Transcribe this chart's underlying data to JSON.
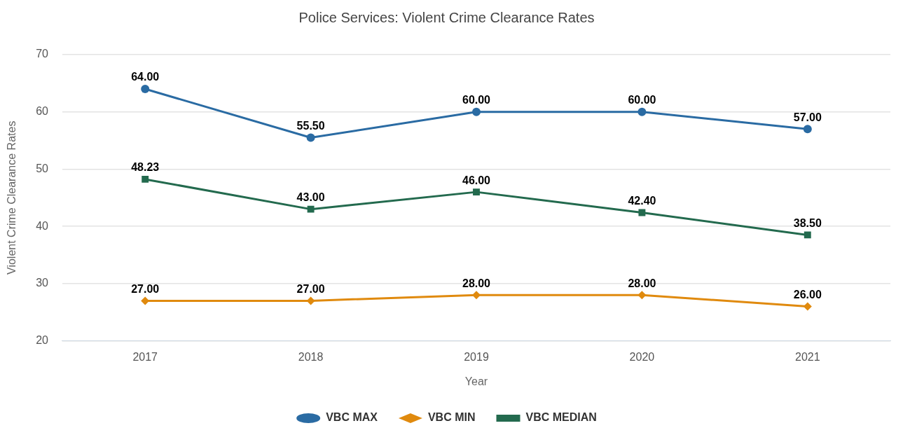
{
  "chart_data": {
    "type": "line",
    "title": "Police Services: Violent Crime Clearance Rates",
    "xlabel": "Year",
    "ylabel": "Violent Crime Clearance Rates",
    "categories": [
      "2017",
      "2018",
      "2019",
      "2020",
      "2021"
    ],
    "series": [
      {
        "name": "VBC MAX",
        "color": "#2a6ba3",
        "marker": "circle",
        "values": [
          64.0,
          55.5,
          60.0,
          60.0,
          57.0
        ],
        "value_labels": [
          "64.00",
          "55.50",
          "60.00",
          "60.00",
          "57.00"
        ]
      },
      {
        "name": "VBC MIN",
        "color": "#e08a0e",
        "marker": "diamond",
        "values": [
          27.0,
          27.0,
          28.0,
          28.0,
          26.0
        ],
        "value_labels": [
          "27.00",
          "27.00",
          "28.00",
          "28.00",
          "26.00"
        ]
      },
      {
        "name": "VBC MEDIAN",
        "color": "#236a4e",
        "marker": "square",
        "values": [
          48.23,
          43.0,
          46.0,
          42.4,
          38.5
        ],
        "value_labels": [
          "48.23",
          "43.00",
          "46.00",
          "42.40",
          "38.50"
        ]
      }
    ],
    "ylim": [
      20,
      70
    ],
    "yticks": [
      20,
      30,
      40,
      50,
      60,
      70
    ],
    "grid": "y",
    "legend": "bottom",
    "line_style": "solid"
  }
}
